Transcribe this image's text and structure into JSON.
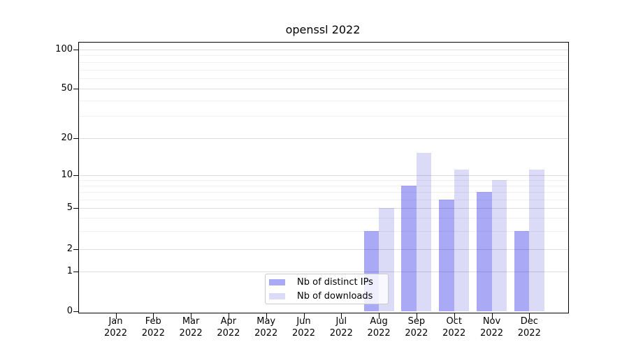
{
  "title": "openssl 2022",
  "chart_data": {
    "type": "bar",
    "title": "openssl 2022",
    "categories": [
      "Jan 2022",
      "Feb 2022",
      "Mar 2022",
      "Apr 2022",
      "May 2022",
      "Jun 2022",
      "Jul 2022",
      "Aug 2022",
      "Sep 2022",
      "Oct 2022",
      "Nov 2022",
      "Dec 2022"
    ],
    "series": [
      {
        "name": "Nb of distinct IPs",
        "color": "#a9a9f5",
        "values": [
          0,
          0,
          0,
          0,
          0,
          0,
          0,
          3,
          8,
          6,
          7,
          3
        ]
      },
      {
        "name": "Nb of downloads",
        "color": "#dbdbf8",
        "values": [
          0,
          0,
          0,
          0,
          0,
          0,
          0,
          5,
          15,
          11,
          9,
          11
        ]
      }
    ],
    "y_ticks": [
      0,
      1,
      2,
      5,
      10,
      20,
      50,
      100
    ],
    "y_minor_ticks": [
      3,
      4,
      6,
      7,
      8,
      9,
      30,
      40,
      60,
      70,
      80,
      90
    ],
    "y_scale": "symlog",
    "ylim": [
      0,
      115
    ],
    "xlabel": "",
    "ylabel": "",
    "grid": true,
    "legend_position": "lower center"
  }
}
